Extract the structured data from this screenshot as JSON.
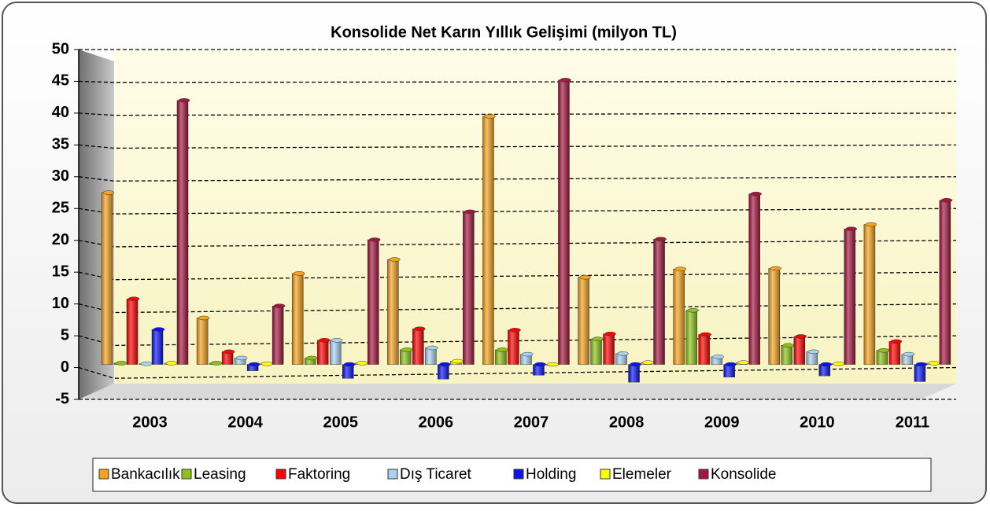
{
  "chart_data": {
    "type": "bar",
    "title": "Konsolide Net Karın Yıllık Gelişimi (milyon TL)",
    "categories": [
      "2003",
      "2004",
      "2005",
      "2006",
      "2007",
      "2008",
      "2009",
      "2010",
      "2011"
    ],
    "series": [
      {
        "name": "Bankacılık",
        "color": "#f5a21f",
        "values": [
          27,
          7.3,
          14.3,
          16.5,
          39,
          13.7,
          15,
          15.1,
          22
        ]
      },
      {
        "name": "Leasing",
        "color": "#8cc21a",
        "values": [
          0.2,
          0.2,
          1,
          2.3,
          2.3,
          4,
          8.5,
          3,
          2.2
        ]
      },
      {
        "name": "Faktoring",
        "color": "#ff0000",
        "values": [
          10.3,
          2,
          3.8,
          5.6,
          5.4,
          4.8,
          4.7,
          4.4,
          3.6
        ]
      },
      {
        "name": "Dış Ticaret",
        "color": "#a9d1f2",
        "values": [
          0.1,
          1,
          3.8,
          2.6,
          1.6,
          1.7,
          1.2,
          2,
          1.6
        ]
      },
      {
        "name": "Holding",
        "color": "#0a14f0",
        "values": [
          5.5,
          -1,
          -2.2,
          -2.3,
          -1.7,
          -2.8,
          -2,
          -1.8,
          -2.7
        ]
      },
      {
        "name": "Elemeler",
        "color": "#ffff00",
        "values": [
          0.2,
          0.1,
          0.2,
          0.5,
          -0.1,
          0.3,
          0.3,
          0.1,
          0.2
        ]
      },
      {
        "name": "Konsolide",
        "color": "#a3163f",
        "values": [
          41.5,
          9.2,
          19.6,
          24,
          44.7,
          19.7,
          26.8,
          21.3,
          25.8
        ]
      }
    ],
    "ylim": [
      -5,
      50
    ],
    "yticks": [
      -5,
      0,
      5,
      10,
      15,
      20,
      25,
      30,
      35,
      40,
      45,
      50
    ],
    "grid": true,
    "legend": "bottom"
  }
}
